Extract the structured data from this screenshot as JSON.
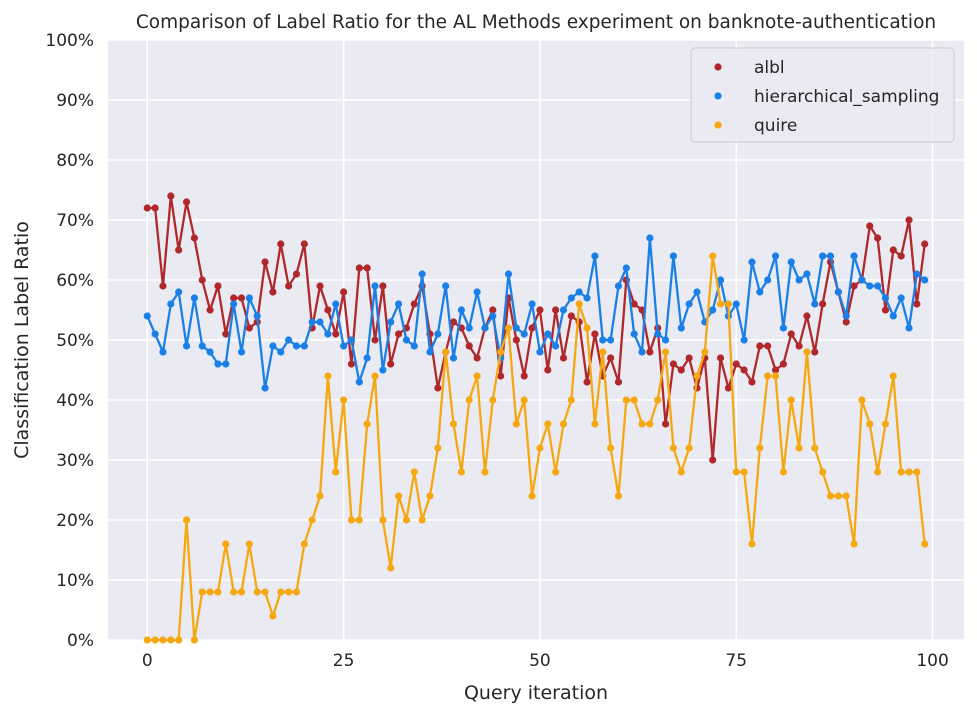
{
  "chart_data": {
    "type": "line",
    "title": "Comparison of Label Ratio for the AL Methods experiment on banknote-authentication",
    "xlabel": "Query iteration",
    "ylabel": "Classification Label Ratio",
    "xlim": [
      -5,
      104
    ],
    "ylim": [
      0,
      1
    ],
    "xticks": [
      0,
      25,
      50,
      75,
      100
    ],
    "xtick_labels": [
      "0",
      "25",
      "50",
      "75",
      "100"
    ],
    "yticks": [
      0,
      0.1,
      0.2,
      0.3,
      0.4,
      0.5,
      0.6,
      0.7,
      0.8,
      0.9,
      1.0
    ],
    "ytick_labels": [
      "0%",
      "10%",
      "20%",
      "30%",
      "40%",
      "50%",
      "60%",
      "70%",
      "80%",
      "90%",
      "100%"
    ],
    "grid": true,
    "legend_position": "top-right",
    "background": "#eaeaf2",
    "grid_color": "#ffffff",
    "series": [
      {
        "name": "albl",
        "color": "#b0282a",
        "values": [
          0.72,
          0.72,
          0.59,
          0.74,
          0.65,
          0.73,
          0.67,
          0.6,
          0.55,
          0.59,
          0.51,
          0.57,
          0.57,
          0.52,
          0.53,
          0.63,
          0.58,
          0.66,
          0.59,
          0.61,
          0.66,
          0.52,
          0.59,
          0.55,
          0.51,
          0.58,
          0.46,
          0.62,
          0.62,
          0.5,
          0.59,
          0.46,
          0.51,
          0.52,
          0.56,
          0.59,
          0.51,
          0.42,
          0.48,
          0.53,
          0.52,
          0.49,
          0.47,
          0.52,
          0.55,
          0.44,
          0.57,
          0.5,
          0.44,
          0.52,
          0.55,
          0.45,
          0.55,
          0.47,
          0.54,
          0.53,
          0.43,
          0.51,
          0.44,
          0.47,
          0.43,
          0.6,
          0.56,
          0.55,
          0.48,
          0.52,
          0.36,
          0.46,
          0.45,
          0.47,
          0.42,
          0.47,
          0.3,
          0.47,
          0.42,
          0.46,
          0.45,
          0.43,
          0.49,
          0.49,
          0.45,
          0.46,
          0.51,
          0.49,
          0.54,
          0.48,
          0.56,
          0.63,
          0.58,
          0.53,
          0.59,
          0.6,
          0.69,
          0.67,
          0.55,
          0.65,
          0.64,
          0.7,
          0.56,
          0.66
        ]
      },
      {
        "name": "hierarchical_sampling",
        "color": "#1a80e8",
        "values": [
          0.54,
          0.51,
          0.48,
          0.56,
          0.58,
          0.49,
          0.57,
          0.49,
          0.48,
          0.46,
          0.46,
          0.56,
          0.48,
          0.57,
          0.54,
          0.42,
          0.49,
          0.48,
          0.5,
          0.49,
          0.49,
          0.53,
          0.53,
          0.51,
          0.56,
          0.49,
          0.5,
          0.43,
          0.47,
          0.59,
          0.45,
          0.53,
          0.56,
          0.5,
          0.49,
          0.61,
          0.48,
          0.51,
          0.59,
          0.47,
          0.55,
          0.52,
          0.58,
          0.52,
          0.54,
          0.47,
          0.61,
          0.52,
          0.51,
          0.56,
          0.48,
          0.51,
          0.49,
          0.55,
          0.57,
          0.58,
          0.57,
          0.64,
          0.5,
          0.5,
          0.59,
          0.62,
          0.51,
          0.48,
          0.67,
          0.51,
          0.5,
          0.64,
          0.52,
          0.56,
          0.58,
          0.53,
          0.55,
          0.6,
          0.54,
          0.56,
          0.5,
          0.63,
          0.58,
          0.6,
          0.64,
          0.52,
          0.63,
          0.6,
          0.61,
          0.56,
          0.64,
          0.64,
          0.58,
          0.54,
          0.64,
          0.6,
          0.59,
          0.59,
          0.57,
          0.54,
          0.57,
          0.52,
          0.61,
          0.6
        ]
      },
      {
        "name": "quire",
        "color": "#f5a811",
        "values": [
          0.0,
          0.0,
          0.0,
          0.0,
          0.0,
          0.2,
          0.0,
          0.08,
          0.08,
          0.08,
          0.16,
          0.08,
          0.08,
          0.16,
          0.08,
          0.08,
          0.04,
          0.08,
          0.08,
          0.08,
          0.16,
          0.2,
          0.24,
          0.44,
          0.28,
          0.4,
          0.2,
          0.2,
          0.36,
          0.44,
          0.2,
          0.12,
          0.24,
          0.2,
          0.28,
          0.2,
          0.24,
          0.32,
          0.48,
          0.36,
          0.28,
          0.4,
          0.44,
          0.28,
          0.4,
          0.48,
          0.52,
          0.36,
          0.4,
          0.24,
          0.32,
          0.36,
          0.28,
          0.36,
          0.4,
          0.56,
          0.52,
          0.36,
          0.48,
          0.32,
          0.24,
          0.4,
          0.4,
          0.36,
          0.36,
          0.4,
          0.48,
          0.32,
          0.28,
          0.32,
          0.44,
          0.48,
          0.64,
          0.56,
          0.56,
          0.28,
          0.28,
          0.16,
          0.32,
          0.44,
          0.44,
          0.28,
          0.4,
          0.32,
          0.48,
          0.32,
          0.28,
          0.24,
          0.24,
          0.24,
          0.16,
          0.4,
          0.36,
          0.28,
          0.36,
          0.44,
          0.28,
          0.28,
          0.28,
          0.16
        ]
      }
    ]
  }
}
